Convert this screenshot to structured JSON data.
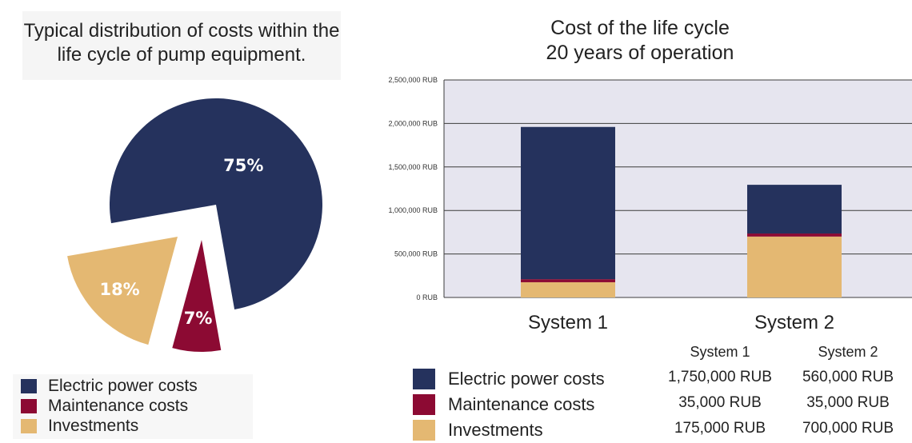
{
  "colors": {
    "electric": "#25325d",
    "maintenance": "#8c0a33",
    "investments": "#e4b872"
  },
  "pie_title": "Typical distribution of costs within the life cycle of pump equipment.",
  "bar_title_line1": "Cost of the life cycle",
  "bar_title_line2": "20 years of operation",
  "legend": {
    "electric": "Electric power costs",
    "maintenance": "Maintenance costs",
    "investments": "Investments"
  },
  "table": {
    "headers": [
      "System 1",
      "System 2"
    ],
    "rows": [
      [
        "1,750,000 RUB",
        "560,000 RUB"
      ],
      [
        "35,000 RUB",
        "35,000 RUB"
      ],
      [
        "175,000 RUB",
        "700,000 RUB"
      ]
    ]
  },
  "chart_data": [
    {
      "type": "pie",
      "title": "Typical distribution of costs within the life cycle of pump equipment.",
      "slices": [
        {
          "label": "Electric power costs",
          "value": 75,
          "text": "75%"
        },
        {
          "label": "Maintenance costs",
          "value": 7,
          "text": "7%"
        },
        {
          "label": "Investments",
          "value": 18,
          "text": "18%"
        }
      ]
    },
    {
      "type": "bar",
      "stacked": true,
      "title": "Cost of the life cycle 20 years of operation",
      "categories": [
        "System 1",
        "System 2"
      ],
      "series": [
        {
          "name": "Investments",
          "values": [
            175000,
            700000
          ]
        },
        {
          "name": "Maintenance costs",
          "values": [
            35000,
            35000
          ]
        },
        {
          "name": "Electric power costs",
          "values": [
            1750000,
            560000
          ]
        }
      ],
      "ylim": [
        0,
        2500000
      ],
      "yticks": [
        0,
        500000,
        1000000,
        1500000,
        2000000,
        2500000
      ],
      "ytick_labels": [
        "0 RUB",
        "500,000 RUB",
        "1,000,000 RUB",
        "1,500,000 RUB",
        "2,000,000 RUB",
        "2,500,000 RUB"
      ],
      "grid": true
    }
  ]
}
